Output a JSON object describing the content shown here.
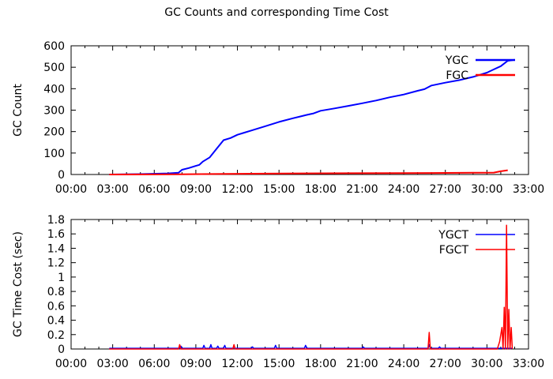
{
  "title": "GC Counts and corresponding Time Cost",
  "colors": {
    "ygc": "#0000ff",
    "fgc": "#ff0000",
    "axis": "#000000"
  },
  "chart_data": [
    {
      "type": "line",
      "ylabel": "GC Count",
      "xlabel": "",
      "xlim": [
        "00:00",
        "33:00"
      ],
      "ylim": [
        0,
        600
      ],
      "x_ticks": [
        "00:00",
        "03:00",
        "06:00",
        "09:00",
        "12:00",
        "15:00",
        "18:00",
        "21:00",
        "24:00",
        "27:00",
        "30:00",
        "33:00"
      ],
      "y_ticks": [
        "0",
        "100",
        "200",
        "300",
        "400",
        "500",
        "600"
      ],
      "grid": false,
      "legend_position": "top-right",
      "series": [
        {
          "name": "YGC",
          "color": "#0000ff",
          "x": [
            "02:45",
            "05:00",
            "07:00",
            "07:45",
            "08:00",
            "08:30",
            "09:00",
            "09:15",
            "09:30",
            "10:00",
            "10:30",
            "11:00",
            "11:30",
            "12:00",
            "12:30",
            "13:00",
            "14:00",
            "15:00",
            "16:00",
            "17:00",
            "17:30",
            "18:00",
            "19:00",
            "20:00",
            "21:00",
            "22:00",
            "23:00",
            "24:00",
            "25:00",
            "25:30",
            "26:00",
            "27:00",
            "28:00",
            "29:00",
            "30:00",
            "30:30",
            "31:00",
            "31:30",
            "32:00"
          ],
          "y": [
            0,
            2,
            5,
            8,
            22,
            30,
            40,
            45,
            60,
            80,
            120,
            160,
            170,
            185,
            195,
            205,
            225,
            245,
            262,
            278,
            285,
            297,
            308,
            320,
            332,
            345,
            360,
            373,
            390,
            398,
            415,
            428,
            440,
            455,
            475,
            490,
            505,
            530,
            535
          ]
        },
        {
          "name": "FGC",
          "color": "#ff0000",
          "x": [
            "02:45",
            "07:45",
            "14:00",
            "20:00",
            "26:00",
            "29:00",
            "30:30",
            "31:00",
            "31:30"
          ],
          "y": [
            0,
            1,
            4,
            6,
            7,
            8,
            9,
            15,
            20
          ]
        }
      ]
    },
    {
      "type": "line",
      "ylabel": "GC Time Cost (sec)",
      "xlabel": "",
      "xlim": [
        "00:00",
        "33:00"
      ],
      "ylim": [
        0,
        1.8
      ],
      "x_ticks": [
        "00:00",
        "03:00",
        "06:00",
        "09:00",
        "12:00",
        "15:00",
        "18:00",
        "21:00",
        "24:00",
        "27:00",
        "30:00",
        "33:00"
      ],
      "y_ticks": [
        "0",
        "0.2",
        "0.4",
        "0.6",
        "0.8",
        "1",
        "1.2",
        "1.4",
        "1.6",
        "1.8"
      ],
      "grid": false,
      "legend_position": "top-right",
      "series": [
        {
          "name": "YGCT",
          "color": "#0000ff",
          "x": [
            "02:45",
            "07:50",
            "07:55",
            "08:00",
            "09:30",
            "09:35",
            "09:40",
            "10:00",
            "10:05",
            "10:10",
            "10:30",
            "10:35",
            "10:40",
            "11:00",
            "11:05",
            "11:10",
            "13:00",
            "13:05",
            "13:10",
            "14:40",
            "14:45",
            "14:50",
            "16:50",
            "16:55",
            "17:00",
            "21:00",
            "21:05",
            "21:10",
            "25:45",
            "25:50",
            "25:55",
            "26:30",
            "26:35",
            "26:40",
            "31:50"
          ],
          "y": [
            0.01,
            0.01,
            0.04,
            0.01,
            0.01,
            0.05,
            0.01,
            0.01,
            0.06,
            0.01,
            0.01,
            0.04,
            0.01,
            0.01,
            0.05,
            0.01,
            0.01,
            0.03,
            0.01,
            0.01,
            0.05,
            0.01,
            0.01,
            0.05,
            0.01,
            0.01,
            0.03,
            0.01,
            0.01,
            0.06,
            0.01,
            0.01,
            0.03,
            0.01,
            0.01
          ]
        },
        {
          "name": "FGCT",
          "color": "#ff0000",
          "x": [
            "02:45",
            "07:45",
            "07:50",
            "07:55",
            "11:40",
            "11:45",
            "11:50",
            "25:45",
            "25:50",
            "25:55",
            "30:45",
            "30:55",
            "31:05",
            "31:10",
            "31:15",
            "31:20",
            "31:25",
            "31:30",
            "31:35",
            "31:40",
            "31:45",
            "31:50"
          ],
          "y": [
            0.0,
            0.0,
            0.06,
            0.0,
            0.0,
            0.06,
            0.0,
            0.0,
            0.23,
            0.0,
            0.0,
            0.1,
            0.3,
            0.0,
            0.58,
            0.0,
            1.72,
            0.0,
            0.55,
            0.0,
            0.3,
            0.0
          ]
        }
      ]
    }
  ]
}
